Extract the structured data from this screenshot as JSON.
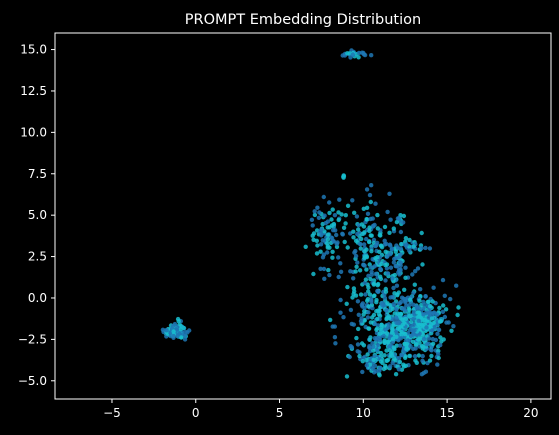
{
  "chart_data": {
    "type": "scatter",
    "title": "PROMPT Embedding Distribution",
    "xlabel": "",
    "ylabel": "",
    "xlim": [
      -8.4,
      21.2
    ],
    "ylim": [
      -6.1,
      16.0
    ],
    "xticks": [
      -5,
      0,
      5,
      10,
      15,
      20
    ],
    "yticks": [
      -5.0,
      -2.5,
      0.0,
      2.5,
      5.0,
      7.5,
      10.0,
      12.5,
      15.0
    ],
    "ytick_labels": [
      "−5.0",
      "−2.5",
      "0.0",
      "2.5",
      "5.0",
      "7.5",
      "10.0",
      "12.5",
      "15.0"
    ],
    "xtick_labels": [
      "−5",
      "0",
      "5",
      "10",
      "15",
      "20"
    ],
    "grid": false,
    "background": "#000000",
    "colors": {
      "light": "#17becf",
      "dark": "#1f77b4"
    },
    "clusters": [
      {
        "cx": 9.5,
        "cy": 14.75,
        "sx": 0.35,
        "sy": 0.12,
        "n": 24
      },
      {
        "cx": -1.2,
        "cy": -2.0,
        "sx": 0.35,
        "sy": 0.25,
        "n": 90
      },
      {
        "cx": 7.8,
        "cy": 4.0,
        "sx": 0.5,
        "sy": 1.1,
        "n": 80
      },
      {
        "cx": 8.8,
        "cy": 7.4,
        "sx": 0.05,
        "sy": 0.1,
        "n": 4
      },
      {
        "cx": 10.2,
        "cy": 4.2,
        "sx": 0.8,
        "sy": 1.0,
        "n": 70
      },
      {
        "cx": 11.3,
        "cy": 2.3,
        "sx": 1.1,
        "sy": 0.9,
        "n": 180
      },
      {
        "cx": 11.5,
        "cy": -0.7,
        "sx": 1.3,
        "sy": 0.9,
        "n": 220
      },
      {
        "cx": 12.2,
        "cy": -2.5,
        "sx": 1.4,
        "sy": 0.8,
        "n": 320
      },
      {
        "cx": 13.6,
        "cy": -1.3,
        "sx": 0.7,
        "sy": 0.6,
        "n": 160
      },
      {
        "cx": 10.8,
        "cy": -4.0,
        "sx": 0.6,
        "sy": 0.4,
        "n": 60
      },
      {
        "cx": 12.3,
        "cy": 4.8,
        "sx": 0.15,
        "sy": 0.15,
        "n": 10
      },
      {
        "cx": 13.4,
        "cy": 3.0,
        "sx": 0.2,
        "sy": 0.1,
        "n": 8
      }
    ]
  }
}
